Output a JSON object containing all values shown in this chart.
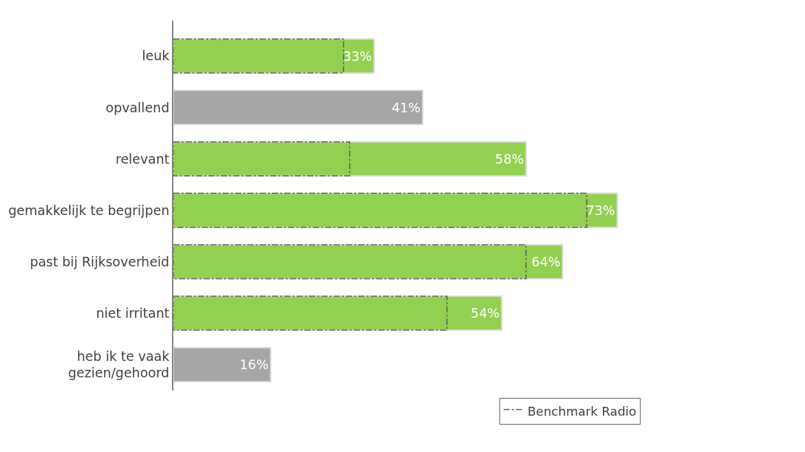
{
  "chart_data": {
    "type": "bar",
    "orientation": "horizontal",
    "categories": [
      "leuk",
      "opvallend",
      "relevant",
      "gemakkelijk te begrijpen",
      "past bij Rijksoverheid",
      "niet irritant",
      "heb ik te vaak\ngezien/gehoord"
    ],
    "series": [
      {
        "colors": [
          "#92d050",
          "#a6a6a6",
          "#92d050",
          "#92d050",
          "#92d050",
          "#92d050",
          "#a6a6a6"
        ],
        "values": [
          33,
          41,
          58,
          73,
          64,
          54,
          16
        ],
        "value_labels": [
          "33%",
          "41%",
          "58%",
          "73%",
          "64%",
          "54%",
          "16%"
        ]
      },
      {
        "name": "Benchmark Radio",
        "color": "#595959",
        "line_style": "dashed",
        "values": [
          28,
          null,
          29,
          68,
          58,
          45,
          null
        ]
      }
    ],
    "legend": "bottom right",
    "tick_labels": "y"
  }
}
